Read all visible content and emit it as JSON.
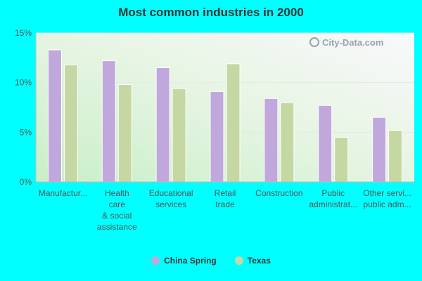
{
  "chart_data": {
    "type": "bar",
    "title": "Most common industries in 2000",
    "categories": [
      [
        "Manufactur..."
      ],
      [
        "Health",
        "care",
        "& social",
        "assistance"
      ],
      [
        "Educational",
        "services"
      ],
      [
        "Retail",
        "trade"
      ],
      [
        "Construction"
      ],
      [
        "Public",
        "administrat..."
      ],
      [
        "Other servi...",
        "public adm..."
      ]
    ],
    "series": [
      {
        "name": "China Spring",
        "color": "#c0a8dc",
        "values": [
          13.3,
          12.2,
          11.5,
          9.1,
          8.4,
          7.7,
          6.5
        ]
      },
      {
        "name": "Texas",
        "color": "#c5d8a4",
        "values": [
          11.8,
          9.8,
          9.4,
          11.9,
          8.0,
          4.5,
          5.2
        ]
      }
    ],
    "yticks": [
      "0%",
      "5%",
      "10%",
      "15%"
    ],
    "ytick_values": [
      0,
      5,
      10,
      15
    ],
    "ylim": [
      0,
      15
    ],
    "xlabel": "",
    "ylabel": "",
    "grid": true,
    "legend_position": "bottom"
  },
  "watermark": "City-Data.com"
}
